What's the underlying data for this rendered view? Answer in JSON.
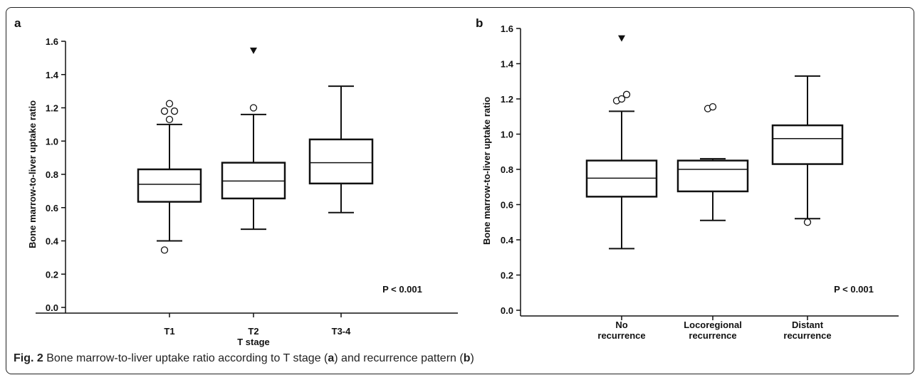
{
  "chart_data": [
    {
      "type": "box",
      "panel_label": "a",
      "xlabel": "T stage",
      "ylabel": "Bone marrow-to-liver uptake ratio",
      "ylim": [
        0.0,
        1.6
      ],
      "yticks": [
        "0.0",
        "0.2",
        "0.4",
        "0.6",
        "0.8",
        "1.0",
        "1.2",
        "1.4",
        "1.6"
      ],
      "annotation": "P < 0.001",
      "categories": [
        {
          "label_lines": [
            "T1"
          ],
          "whisker_low": 0.4,
          "q1": 0.635,
          "median": 0.74,
          "q3": 0.83,
          "whisker_high": 1.1,
          "outliers": [
            0.345,
            1.13,
            1.18,
            1.18,
            1.225
          ],
          "far_outliers": []
        },
        {
          "label_lines": [
            "T2"
          ],
          "whisker_low": 0.47,
          "q1": 0.655,
          "median": 0.76,
          "q3": 0.87,
          "whisker_high": 1.16,
          "outliers": [
            1.2
          ],
          "far_outliers": [
            1.545
          ]
        },
        {
          "label_lines": [
            "T3-4"
          ],
          "whisker_low": 0.57,
          "q1": 0.745,
          "median": 0.87,
          "q3": 1.01,
          "whisker_high": 1.33,
          "outliers": [],
          "far_outliers": []
        }
      ]
    },
    {
      "type": "box",
      "panel_label": "b",
      "xlabel": "",
      "ylabel": "Bone marrow-to-liver uptake ratio",
      "ylim": [
        0.0,
        1.6
      ],
      "yticks": [
        "0.0",
        "0.2",
        "0.4",
        "0.6",
        "0.8",
        "1.0",
        "1.2",
        "1.4",
        "1.6"
      ],
      "annotation": "P < 0.001",
      "categories": [
        {
          "label_lines": [
            "No",
            "recurrence"
          ],
          "whisker_low": 0.35,
          "q1": 0.645,
          "median": 0.75,
          "q3": 0.85,
          "whisker_high": 1.13,
          "outliers": [
            1.19,
            1.2,
            1.225
          ],
          "far_outliers": [
            1.545
          ]
        },
        {
          "label_lines": [
            "Locoregional",
            "recurrence"
          ],
          "whisker_low": 0.51,
          "q1": 0.675,
          "median": 0.8,
          "q3": 0.85,
          "whisker_high": 0.86,
          "outliers": [
            1.145,
            1.155
          ],
          "far_outliers": []
        },
        {
          "label_lines": [
            "Distant",
            "recurrence"
          ],
          "whisker_low": 0.52,
          "q1": 0.83,
          "median": 0.975,
          "q3": 1.05,
          "whisker_high": 1.33,
          "outliers": [
            0.5
          ],
          "far_outliers": []
        }
      ]
    }
  ],
  "caption": {
    "prefix": "Fig. 2",
    "text_1": " Bone marrow-to-liver uptake ratio according to T stage (",
    "ref_a": "a",
    "text_2": ") and recurrence pattern (",
    "ref_b": "b",
    "text_3": ")"
  }
}
